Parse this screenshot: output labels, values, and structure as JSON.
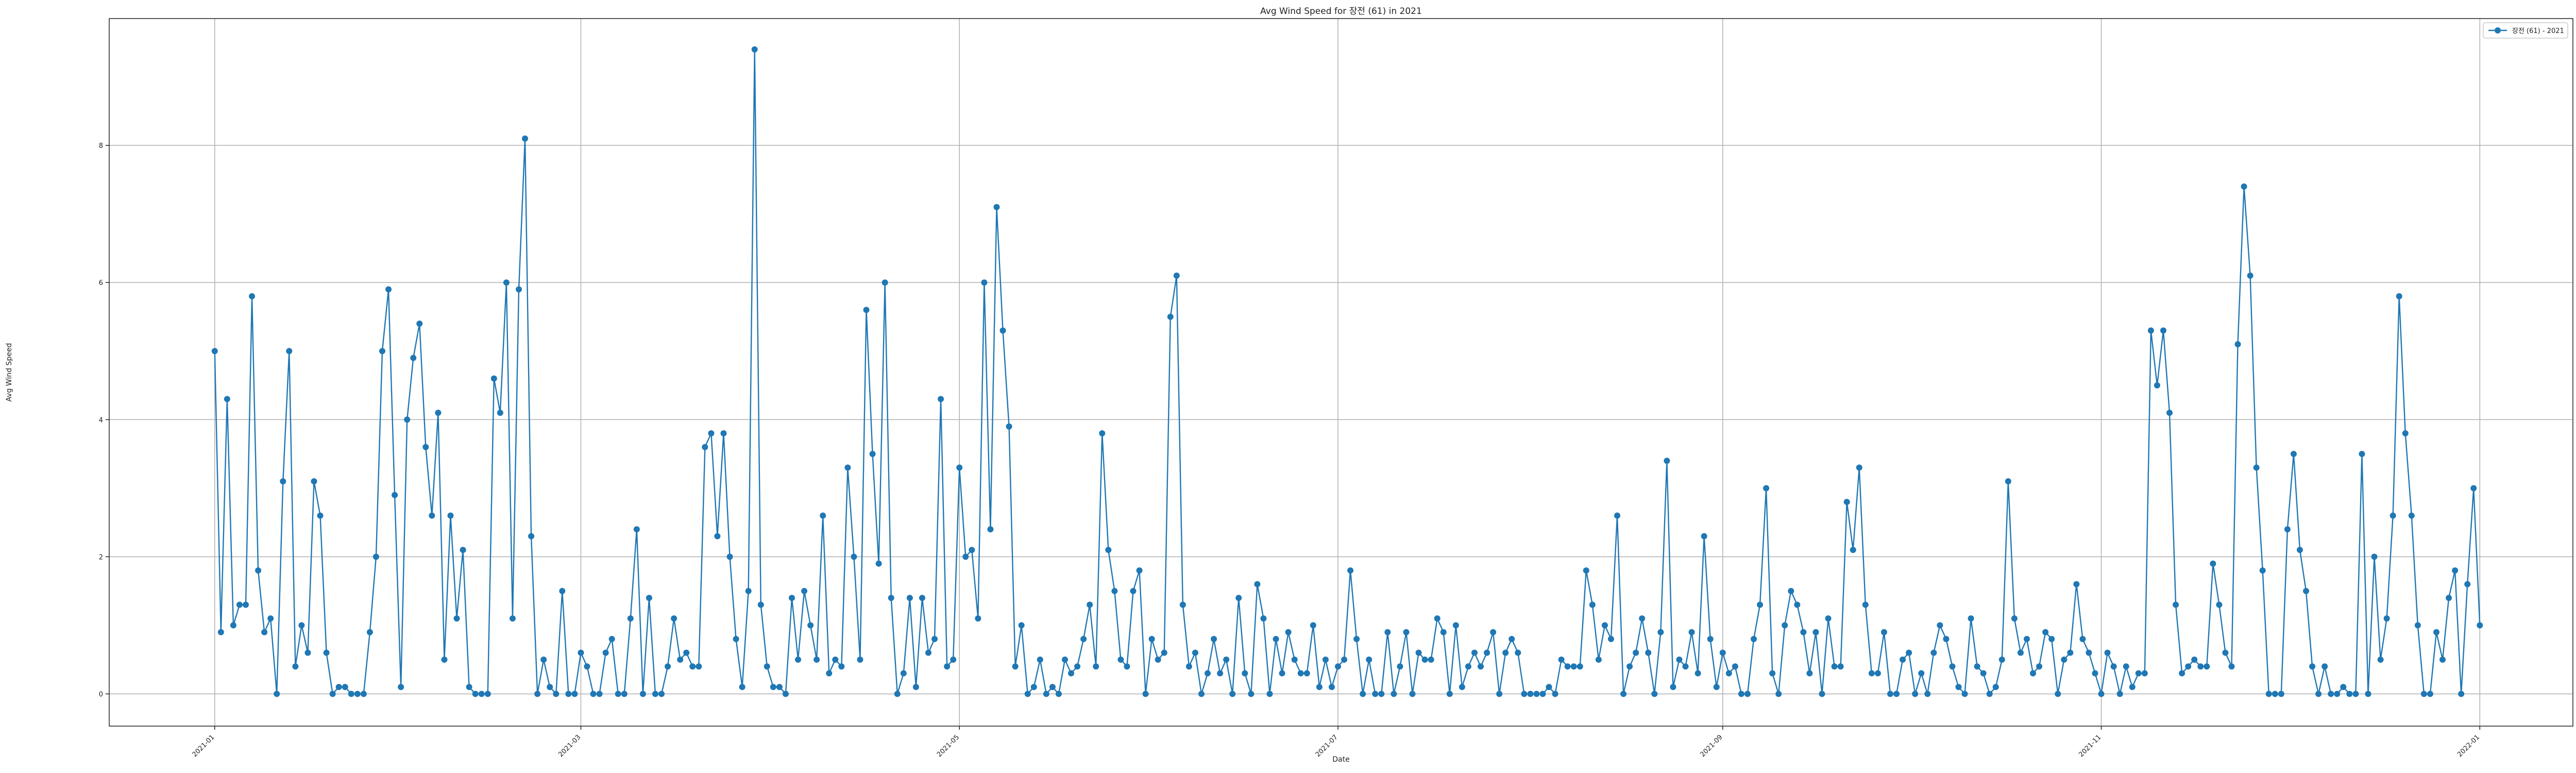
{
  "chart_data": {
    "type": "line",
    "title": "Avg Wind Speed for 장전 (61) in 2021",
    "xlabel": "Date",
    "ylabel": "Avg Wind Speed",
    "x_start": "2021-01-01",
    "x_end": "2021-12-31",
    "x_range": [
      "2020-12-15",
      "2022-01-16"
    ],
    "ylim": [
      -0.47,
      9.85
    ],
    "y_ticks": [
      0,
      2,
      4,
      6,
      8
    ],
    "x_ticks": [
      {
        "date": "2021-01-01",
        "label": "2021-01"
      },
      {
        "date": "2021-03-01",
        "label": "2021-03"
      },
      {
        "date": "2021-05-01",
        "label": "2021-05"
      },
      {
        "date": "2021-07-01",
        "label": "2021-07"
      },
      {
        "date": "2021-09-01",
        "label": "2021-09"
      },
      {
        "date": "2021-11-01",
        "label": "2021-11"
      },
      {
        "date": "2022-01-01",
        "label": "2022-01"
      }
    ],
    "grid": true,
    "legend_position": "top-right",
    "line_color": "#1f77b4",
    "series": [
      {
        "name": "장전 (61) - 2021",
        "values": [
          5.0,
          0.9,
          4.3,
          1.0,
          1.3,
          1.3,
          5.8,
          1.8,
          0.9,
          1.1,
          0.0,
          3.1,
          5.0,
          0.4,
          1.0,
          0.6,
          3.1,
          2.6,
          0.6,
          0.0,
          0.1,
          0.1,
          0.0,
          0.0,
          0.0,
          0.9,
          2.0,
          5.0,
          5.9,
          2.9,
          0.1,
          4.0,
          4.9,
          5.4,
          3.6,
          2.6,
          4.1,
          0.5,
          2.6,
          1.1,
          2.1,
          0.1,
          0.0,
          0.0,
          0.0,
          4.6,
          4.1,
          6.0,
          1.1,
          5.9,
          8.1,
          2.3,
          0.0,
          0.5,
          0.1,
          0.0,
          1.5,
          0.0,
          0.0,
          0.6,
          0.4,
          0.0,
          0.0,
          0.6,
          0.8,
          0.0,
          0.0,
          1.1,
          2.4,
          0.0,
          1.4,
          0.0,
          0.0,
          0.4,
          1.1,
          0.5,
          0.6,
          0.4,
          0.4,
          3.6,
          3.8,
          2.3,
          3.8,
          2.0,
          0.8,
          0.1,
          1.5,
          9.4,
          1.3,
          0.4,
          0.1,
          0.1,
          0.0,
          1.4,
          0.5,
          1.5,
          1.0,
          0.5,
          2.6,
          0.3,
          0.5,
          0.4,
          3.3,
          2.0,
          0.5,
          5.6,
          3.5,
          1.9,
          6.0,
          1.4,
          0.0,
          0.3,
          1.4,
          0.1,
          1.4,
          0.6,
          0.8,
          4.3,
          0.4,
          0.5,
          3.3,
          2.0,
          2.1,
          1.1,
          6.0,
          2.4,
          7.1,
          5.3,
          3.9,
          0.4,
          1.0,
          0.0,
          0.1,
          0.5,
          0.0,
          0.1,
          0.0,
          0.5,
          0.3,
          0.4,
          0.8,
          1.3,
          0.4,
          3.8,
          2.1,
          1.5,
          0.5,
          0.4,
          1.5,
          1.8,
          0.0,
          0.8,
          0.5,
          0.6,
          5.5,
          6.1,
          1.3,
          0.4,
          0.6,
          0.0,
          0.3,
          0.8,
          0.3,
          0.5,
          0.0,
          1.4,
          0.3,
          0.0,
          1.6,
          1.1,
          0.0,
          0.8,
          0.3,
          0.9,
          0.5,
          0.3,
          0.3,
          1.0,
          0.1,
          0.5,
          0.1,
          0.4,
          0.5,
          1.8,
          0.8,
          0.0,
          0.5,
          0.0,
          0.0,
          0.9,
          0.0,
          0.4,
          0.9,
          0.0,
          0.6,
          0.5,
          0.5,
          1.1,
          0.9,
          0.0,
          1.0,
          0.1,
          0.4,
          0.6,
          0.4,
          0.6,
          0.9,
          0.0,
          0.6,
          0.8,
          0.6,
          0.0,
          0.0,
          0.0,
          0.0,
          0.1,
          0.0,
          0.5,
          0.4,
          0.4,
          0.4,
          1.8,
          1.3,
          0.5,
          1.0,
          0.8,
          2.6,
          0.0,
          0.4,
          0.6,
          1.1,
          0.6,
          0.0,
          0.9,
          3.4,
          0.1,
          0.5,
          0.4,
          0.9,
          0.3,
          2.3,
          0.8,
          0.1,
          0.6,
          0.3,
          0.4,
          0.0,
          0.0,
          0.8,
          1.3,
          3.0,
          0.3,
          0.0,
          1.0,
          1.5,
          1.3,
          0.9,
          0.3,
          0.9,
          0.0,
          1.1,
          0.4,
          0.4,
          2.8,
          2.1,
          3.3,
          1.3,
          0.3,
          0.3,
          0.9,
          0.0,
          0.0,
          0.5,
          0.6,
          0.0,
          0.3,
          0.0,
          0.6,
          1.0,
          0.8,
          0.4,
          0.1,
          0.0,
          1.1,
          0.4,
          0.3,
          0.0,
          0.1,
          0.5,
          3.1,
          1.1,
          0.6,
          0.8,
          0.3,
          0.4,
          0.9,
          0.8,
          0.0,
          0.5,
          0.6,
          1.6,
          0.8,
          0.6,
          0.3,
          0.0,
          0.6,
          0.4,
          0.0,
          0.4,
          0.1,
          0.3,
          0.3,
          5.3,
          4.5,
          5.3,
          4.1,
          1.3,
          0.3,
          0.4,
          0.5,
          0.4,
          0.4,
          1.9,
          1.3,
          0.6,
          0.4,
          5.1,
          7.4,
          6.1,
          3.3,
          1.8,
          0.0,
          0.0,
          0.0,
          2.4,
          3.5,
          2.1,
          1.5,
          0.4,
          0.0,
          0.4,
          0.0,
          0.0,
          0.1,
          0.0,
          0.0,
          3.5,
          0.0,
          2.0,
          0.5,
          1.1,
          2.6,
          5.8,
          3.8,
          2.6,
          1.0,
          0.0,
          0.0,
          0.9,
          0.5,
          1.4,
          1.8,
          0.0,
          1.6,
          3.0,
          1.0
        ]
      }
    ]
  }
}
